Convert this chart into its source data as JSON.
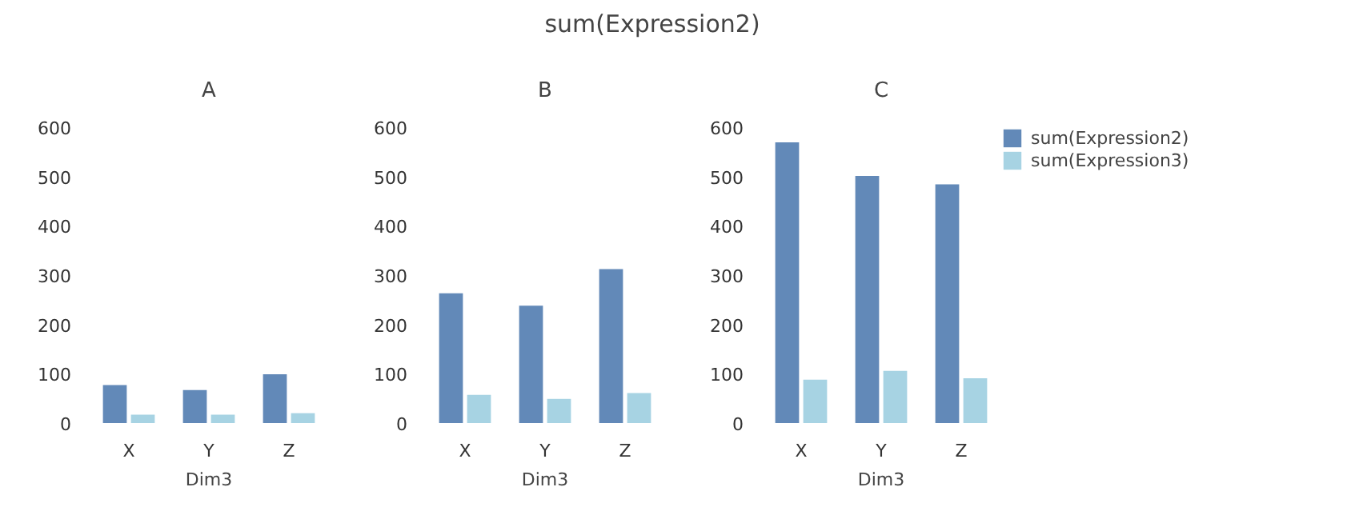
{
  "chart_data": [
    {
      "type": "bar",
      "title": "A",
      "xlabel": "Dim3",
      "categories": [
        "X",
        "Y",
        "Z"
      ],
      "ylim": [
        0,
        600
      ],
      "yticks": [
        0,
        100,
        200,
        300,
        400,
        500,
        600
      ],
      "grid": false,
      "annotations": [
        "sum(Expression2)"
      ],
      "series": [
        {
          "color": "#6289b8",
          "values": [
            77,
            67,
            99
          ]
        },
        {
          "color": "#a7d3e3",
          "values": [
            17,
            17,
            20
          ]
        }
      ]
    },
    {
      "type": "bar",
      "title": "B",
      "xlabel": "Dim3",
      "categories": [
        "X",
        "Y",
        "Z"
      ],
      "ylim": [
        0,
        600
      ],
      "yticks": [
        0,
        100,
        200,
        300,
        400,
        500,
        600
      ],
      "grid": false,
      "series": [
        {
          "color": "#6289b8",
          "values": [
            263,
            238,
            312
          ]
        },
        {
          "color": "#a7d3e3",
          "values": [
            57,
            49,
            61
          ]
        }
      ]
    },
    {
      "type": "bar",
      "title": "C",
      "xlabel": "Dim3",
      "categories": [
        "X",
        "Y",
        "Z"
      ],
      "ylim": [
        0,
        600
      ],
      "yticks": [
        0,
        100,
        200,
        300,
        400,
        500,
        600
      ],
      "grid": false,
      "legend": "right",
      "series": [
        {
          "name": "sum(Expression2)",
          "color": "#6289b8",
          "values": [
            569,
            501,
            484
          ]
        },
        {
          "name": "sum(Expression3)",
          "color": "#a7d3e3",
          "values": [
            88,
            106,
            91
          ]
        }
      ]
    }
  ]
}
